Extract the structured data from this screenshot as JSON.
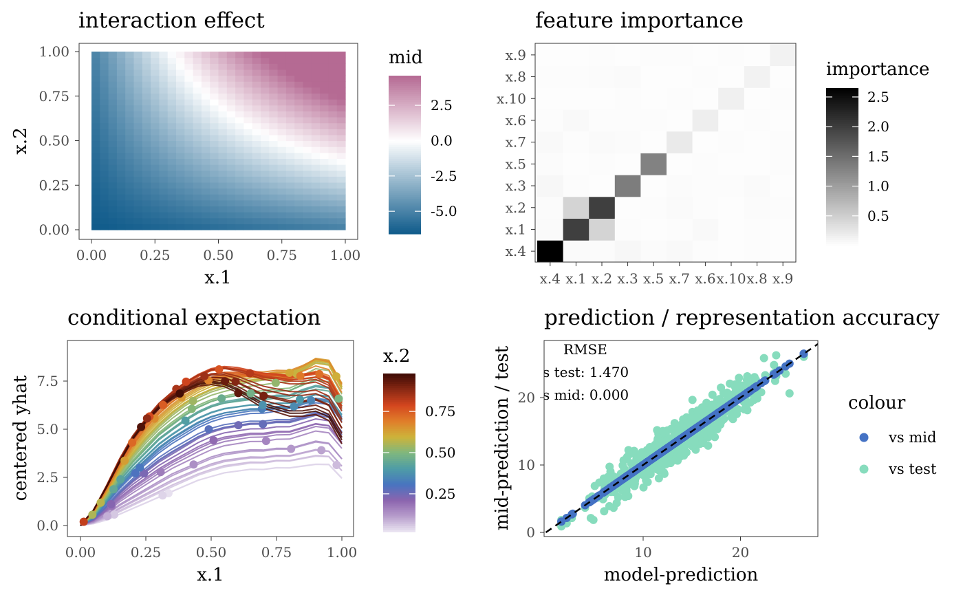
{
  "chart_data": [
    {
      "type": "heatmap",
      "title": "interaction effect",
      "xlabel": "x.1",
      "ylabel": "x.2",
      "xlim": [
        0,
        1
      ],
      "ylim": [
        0,
        1
      ],
      "x_ticks": [
        "0.00",
        "0.25",
        "0.50",
        "0.75",
        "1.00"
      ],
      "y_ticks": [
        "0.00",
        "0.25",
        "0.50",
        "0.75",
        "1.00"
      ],
      "legend": {
        "title": "mid",
        "range": [
          -6.6,
          4.6
        ],
        "breaks": [
          -5.0,
          -2.5,
          0.0,
          2.5
        ],
        "labels": [
          "-5.0",
          "-2.5",
          "0.0",
          "2.5"
        ],
        "low_color": "#0e5a8a",
        "mid_color": "#ffffff",
        "high_color": "#b56a93"
      },
      "value_extremes": {
        "min": -6.6,
        "max": 4.6
      },
      "grid": false
    },
    {
      "type": "heatmap",
      "title": "feature importance",
      "x_categories": [
        "x.4",
        "x.1",
        "x.2",
        "x.3",
        "x.5",
        "x.7",
        "x.6",
        "x.10",
        "x.8",
        "x.9"
      ],
      "y_categories": [
        "x.4",
        "x.1",
        "x.2",
        "x.3",
        "x.5",
        "x.7",
        "x.6",
        "x.10",
        "x.8",
        "x.9"
      ],
      "values": [
        [
          2.65,
          0.05,
          0.04,
          0.08,
          0.04,
          0.06,
          0.03,
          0.02,
          0.03,
          0.02
        ],
        [
          0.05,
          2.0,
          0.45,
          0.03,
          0.02,
          0.03,
          0.06,
          0.02,
          0.03,
          0.02
        ],
        [
          0.04,
          0.45,
          2.0,
          0.02,
          0.03,
          0.05,
          0.03,
          0.02,
          0.04,
          0.03
        ],
        [
          0.08,
          0.03,
          0.02,
          1.35,
          0.02,
          0.04,
          0.03,
          0.03,
          0.05,
          0.02
        ],
        [
          0.04,
          0.02,
          0.03,
          0.02,
          1.3,
          0.02,
          0.03,
          0.02,
          0.02,
          0.03
        ],
        [
          0.06,
          0.03,
          0.05,
          0.04,
          0.02,
          0.22,
          0.02,
          0.03,
          0.02,
          0.03
        ],
        [
          0.03,
          0.06,
          0.03,
          0.03,
          0.03,
          0.02,
          0.18,
          0.02,
          0.03,
          0.02
        ],
        [
          0.02,
          0.02,
          0.02,
          0.03,
          0.02,
          0.03,
          0.02,
          0.16,
          0.02,
          0.03
        ],
        [
          0.03,
          0.03,
          0.04,
          0.05,
          0.02,
          0.02,
          0.03,
          0.02,
          0.14,
          0.02
        ],
        [
          0.02,
          0.02,
          0.03,
          0.02,
          0.03,
          0.03,
          0.02,
          0.03,
          0.02,
          0.14
        ]
      ],
      "legend": {
        "title": "importance",
        "range": [
          0.0,
          2.65
        ],
        "breaks": [
          0.5,
          1.0,
          1.5,
          2.0,
          2.5
        ],
        "labels": [
          "0.5",
          "1.0",
          "1.5",
          "2.0",
          "2.5"
        ],
        "low_color": "#ffffff",
        "high_color": "#000000"
      },
      "grid": false
    },
    {
      "type": "line",
      "title": "conditional expectation",
      "xlabel": "x.1",
      "ylabel": "centered yhat",
      "xlim": [
        0,
        1
      ],
      "ylim": [
        -0.3,
        9.0
      ],
      "x_ticks": [
        "0.00",
        "0.25",
        "0.50",
        "0.75",
        "1.00"
      ],
      "y_ticks": [
        "0.0",
        "2.5",
        "5.0",
        "7.5"
      ],
      "x": [
        0,
        0.05,
        0.1,
        0.15,
        0.2,
        0.25,
        0.3,
        0.35,
        0.4,
        0.45,
        0.5,
        0.55,
        0.6,
        0.65,
        0.7,
        0.75,
        0.8,
        0.85,
        0.9,
        0.95,
        1.0
      ],
      "series_note": "ICE curves colored by x.2",
      "series": [
        {
          "x2": 0.02,
          "values": [
            0,
            0.1,
            0.3,
            0.6,
            0.9,
            1.2,
            1.5,
            1.8,
            2.1,
            2.4,
            2.6,
            2.8,
            2.9,
            3.0,
            3.0,
            3.1,
            3.1,
            3.2,
            3.3,
            3.3,
            2.6
          ]
        },
        {
          "x2": 0.12,
          "values": [
            0,
            0.2,
            0.6,
            1.1,
            1.5,
            1.9,
            2.3,
            2.7,
            3.0,
            3.3,
            3.6,
            3.8,
            3.9,
            4.0,
            4.0,
            4.1,
            4.1,
            4.3,
            4.5,
            4.4,
            3.6
          ]
        },
        {
          "x2": 0.22,
          "values": [
            0,
            0.3,
            0.9,
            1.6,
            2.2,
            2.7,
            3.2,
            3.6,
            4.0,
            4.4,
            4.7,
            4.9,
            5.0,
            5.1,
            5.1,
            5.2,
            5.2,
            5.4,
            5.6,
            5.5,
            4.6
          ]
        },
        {
          "x2": 0.32,
          "values": [
            0,
            0.4,
            1.2,
            2.0,
            2.7,
            3.3,
            3.9,
            4.4,
            4.8,
            5.2,
            5.5,
            5.7,
            5.8,
            5.9,
            5.9,
            6.0,
            6.0,
            6.2,
            6.4,
            6.3,
            5.4
          ]
        },
        {
          "x2": 0.45,
          "values": [
            0,
            0.5,
            1.4,
            2.4,
            3.2,
            3.9,
            4.6,
            5.1,
            5.6,
            6.0,
            6.3,
            6.5,
            6.6,
            6.7,
            6.7,
            6.8,
            6.8,
            7.1,
            7.3,
            7.2,
            6.2
          ]
        },
        {
          "x2": 0.55,
          "values": [
            0,
            0.6,
            1.6,
            2.7,
            3.6,
            4.4,
            5.1,
            5.7,
            6.2,
            6.6,
            6.9,
            7.1,
            7.3,
            7.4,
            7.5,
            7.6,
            7.7,
            8.0,
            8.4,
            8.3,
            7.0
          ]
        },
        {
          "x2": 0.65,
          "values": [
            0,
            0.7,
            1.8,
            3.0,
            4.0,
            4.9,
            5.6,
            6.2,
            6.7,
            7.1,
            7.4,
            7.6,
            7.7,
            7.8,
            7.8,
            7.9,
            7.9,
            8.2,
            8.6,
            8.5,
            7.3
          ]
        },
        {
          "x2": 0.75,
          "values": [
            0,
            0.8,
            2.0,
            3.3,
            4.4,
            5.3,
            6.1,
            6.7,
            7.2,
            7.6,
            7.9,
            8.0,
            8.0,
            7.9,
            7.8,
            7.8,
            7.7,
            7.8,
            7.9,
            7.6,
            6.4
          ]
        },
        {
          "x2": 0.85,
          "values": [
            0,
            0.8,
            2.1,
            3.5,
            4.7,
            5.6,
            6.4,
            7.0,
            7.5,
            7.9,
            8.2,
            8.3,
            8.2,
            8.0,
            7.8,
            7.7,
            7.6,
            7.6,
            7.7,
            7.4,
            6.2
          ]
        },
        {
          "x2": 0.95,
          "values": [
            0,
            0.8,
            2.0,
            3.3,
            4.5,
            5.4,
            6.1,
            6.6,
            7.0,
            7.3,
            7.4,
            7.3,
            7.0,
            6.6,
            6.2,
            6.0,
            5.8,
            5.8,
            5.9,
            5.6,
            4.4
          ]
        }
      ],
      "legend": {
        "title": "x.2",
        "breaks": [
          0.25,
          0.5,
          0.75
        ],
        "labels": [
          "0.25",
          "0.50",
          "0.75"
        ],
        "palette": [
          "#ebe6f2",
          "#b79dcc",
          "#8c64ae",
          "#4874c0",
          "#4e9ca6",
          "#7fb77e",
          "#cdb33a",
          "#e07e2a",
          "#d4461f",
          "#8a2914",
          "#3d0a05"
        ]
      },
      "grid": false
    },
    {
      "type": "scatter",
      "title": "prediction / representation accuracy",
      "xlabel": "model-prediction",
      "ylabel": "mid-prediction / test",
      "xlim": [
        0,
        28
      ],
      "ylim": [
        0,
        28.5
      ],
      "x_ticks": [
        "10",
        "20"
      ],
      "y_ticks": [
        "0",
        "10",
        "20"
      ],
      "annotation": [
        "RMSE",
        "s test: 1.470",
        "s mid: 0.000"
      ],
      "reference_line": {
        "slope": 1,
        "intercept": 0,
        "style": "dashed"
      },
      "series": [
        {
          "name": "vs mid",
          "color": "#4472c4",
          "x_range": [
            1.5,
            26.5
          ],
          "relation": "y = x"
        },
        {
          "name": "vs test",
          "color": "#87dcbd",
          "x_range": [
            1.5,
            26.5
          ],
          "noise_sd": 1.47
        }
      ],
      "legend": {
        "title": "colour",
        "position": "right",
        "labels": [
          "vs mid",
          "vs test"
        ]
      },
      "grid": false
    }
  ]
}
